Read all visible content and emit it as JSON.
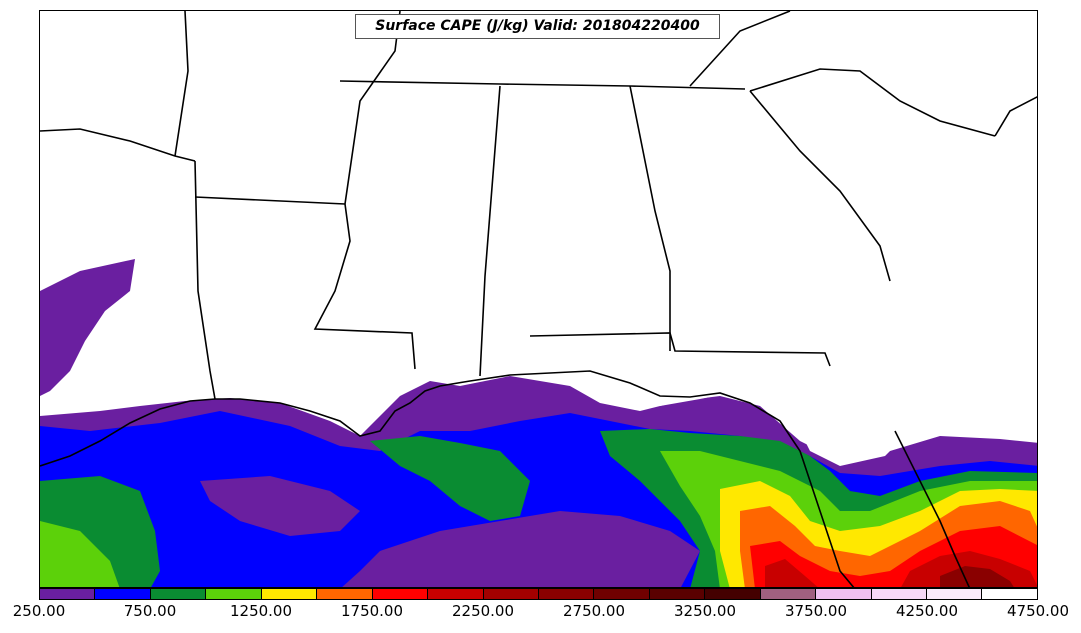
{
  "title": "Surface CAPE (J/kg) Valid: 201804220400",
  "colorbar": {
    "colors": [
      "#6a1fa0",
      "#0000ff",
      "#0a8c32",
      "#5cd10a",
      "#ffe800",
      "#ff6600",
      "#ff0000",
      "#c80000",
      "#a30000",
      "#8a0000",
      "#700000",
      "#5a0000",
      "#440000",
      "#a06080",
      "#f0c0f0",
      "#f7d8f7",
      "#fbeafb",
      "#ffffff"
    ],
    "tick_labels": [
      "250.00",
      "750.00",
      "1250.00",
      "1750.00",
      "2250.00",
      "2750.00",
      "3250.00",
      "3750.00",
      "4250.00",
      "4750.00"
    ]
  }
}
